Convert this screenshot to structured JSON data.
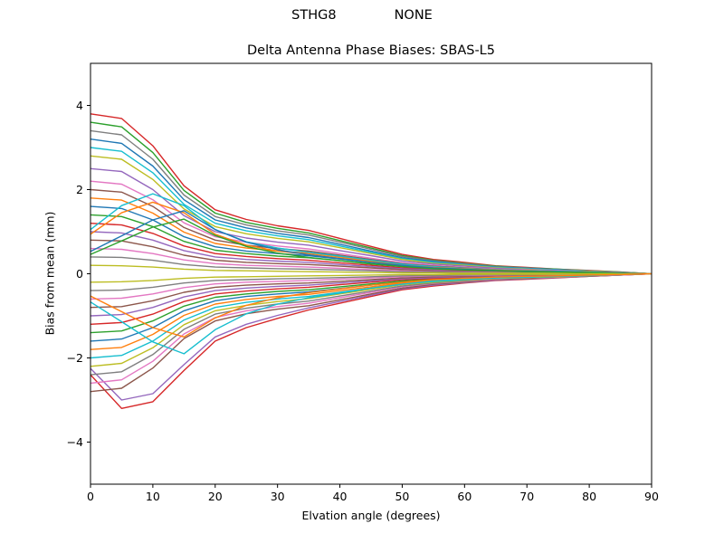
{
  "figure": {
    "suptitle_left": "STHG8",
    "suptitle_right": "NONE",
    "background": "#ffffff",
    "axis_color": "#000000"
  },
  "chart_data": {
    "type": "line",
    "title": "Delta Antenna Phase Biases: SBAS-L5",
    "xlabel": "Elvation angle (degrees)",
    "ylabel": "Bias from mean (mm)",
    "xlim": [
      0,
      90
    ],
    "ylim": [
      -5,
      5
    ],
    "grid": false,
    "legend": null,
    "x_ticks": [
      0,
      10,
      20,
      30,
      40,
      50,
      60,
      70,
      80,
      90
    ],
    "x_tick_labels": [
      "0",
      "10",
      "20",
      "30",
      "40",
      "50",
      "60",
      "70",
      "80",
      "90"
    ],
    "y_ticks": [
      -4,
      -2,
      0,
      2,
      4
    ],
    "y_tick_labels": [
      "−4",
      "−2",
      "0",
      "2",
      "4"
    ],
    "x": [
      0,
      5,
      10,
      15,
      20,
      25,
      30,
      35,
      40,
      45,
      50,
      55,
      60,
      65,
      70,
      75,
      80,
      85,
      90
    ],
    "series": [
      {
        "name": "s01",
        "color": "#d62728",
        "values": [
          3.8,
          3.69,
          3.04,
          2.09,
          1.52,
          1.29,
          1.14,
          1.03,
          0.84,
          0.65,
          0.46,
          0.34,
          0.27,
          0.19,
          0.15,
          0.11,
          0.08,
          0.04,
          0
        ]
      },
      {
        "name": "s02",
        "color": "#2ca02c",
        "values": [
          3.6,
          3.49,
          2.88,
          1.98,
          1.44,
          1.22,
          1.08,
          0.97,
          0.79,
          0.61,
          0.43,
          0.32,
          0.25,
          0.18,
          0.14,
          0.11,
          0.07,
          0.04,
          0
        ]
      },
      {
        "name": "s03",
        "color": "#7f7f7f",
        "values": [
          3.4,
          3.3,
          2.72,
          1.87,
          1.36,
          1.16,
          1.02,
          0.92,
          0.75,
          0.58,
          0.41,
          0.31,
          0.24,
          0.17,
          0.14,
          0.1,
          0.07,
          0.03,
          0
        ]
      },
      {
        "name": "s04",
        "color": "#1f77b4",
        "values": [
          3.2,
          3.1,
          2.56,
          1.76,
          1.28,
          1.09,
          0.96,
          0.86,
          0.7,
          0.54,
          0.38,
          0.29,
          0.22,
          0.16,
          0.13,
          0.1,
          0.06,
          0.03,
          0
        ]
      },
      {
        "name": "s05",
        "color": "#17becf",
        "values": [
          3,
          2.91,
          2.4,
          1.65,
          1.2,
          1.02,
          0.9,
          0.81,
          0.66,
          0.51,
          0.36,
          0.27,
          0.21,
          0.15,
          0.12,
          0.09,
          0.06,
          0.03,
          0
        ]
      },
      {
        "name": "s06",
        "color": "#bcbd22",
        "values": [
          2.8,
          2.72,
          2.24,
          1.54,
          1.12,
          0.95,
          0.84,
          0.76,
          0.62,
          0.48,
          0.34,
          0.25,
          0.2,
          0.14,
          0.11,
          0.08,
          0.06,
          0.03,
          0
        ]
      },
      {
        "name": "s07",
        "color": "#9467bd",
        "values": [
          2.5,
          2.43,
          2,
          1.38,
          1,
          0.85,
          0.75,
          0.68,
          0.55,
          0.43,
          0.3,
          0.23,
          0.18,
          0.13,
          0.1,
          0.08,
          0.05,
          0.03,
          0
        ]
      },
      {
        "name": "s08",
        "color": "#e377c2",
        "values": [
          2.2,
          2.13,
          1.76,
          1.21,
          0.88,
          0.75,
          0.66,
          0.59,
          0.48,
          0.37,
          0.26,
          0.2,
          0.15,
          0.11,
          0.09,
          0.07,
          0.04,
          0.02,
          0
        ]
      },
      {
        "name": "s09",
        "color": "#8c564b",
        "values": [
          2,
          1.94,
          1.6,
          1.1,
          0.8,
          0.68,
          0.6,
          0.54,
          0.44,
          0.34,
          0.24,
          0.18,
          0.14,
          0.1,
          0.08,
          0.06,
          0.04,
          0.02,
          0
        ]
      },
      {
        "name": "s10",
        "color": "#ff7f0e",
        "values": [
          1.8,
          1.75,
          1.44,
          0.99,
          0.72,
          0.61,
          0.54,
          0.49,
          0.4,
          0.31,
          0.22,
          0.16,
          0.13,
          0.09,
          0.07,
          0.05,
          0.04,
          0.02,
          0
        ]
      },
      {
        "name": "s11",
        "color": "#1f77b4",
        "values": [
          1.6,
          1.55,
          1.28,
          0.88,
          0.64,
          0.54,
          0.48,
          0.43,
          0.35,
          0.27,
          0.19,
          0.14,
          0.11,
          0.08,
          0.06,
          0.05,
          0.03,
          0.02,
          0
        ]
      },
      {
        "name": "s12",
        "color": "#2ca02c",
        "values": [
          1.4,
          1.36,
          1.12,
          0.77,
          0.56,
          0.48,
          0.42,
          0.38,
          0.31,
          0.24,
          0.17,
          0.13,
          0.1,
          0.07,
          0.06,
          0.04,
          0.03,
          0.01,
          0
        ]
      },
      {
        "name": "s13",
        "color": "#d62728",
        "values": [
          1.2,
          1.16,
          0.96,
          0.66,
          0.48,
          0.41,
          0.36,
          0.32,
          0.26,
          0.2,
          0.14,
          0.11,
          0.08,
          0.06,
          0.05,
          0.04,
          0.02,
          0.01,
          0
        ]
      },
      {
        "name": "s14",
        "color": "#9467bd",
        "values": [
          1,
          0.97,
          0.8,
          0.55,
          0.4,
          0.34,
          0.3,
          0.27,
          0.22,
          0.17,
          0.12,
          0.09,
          0.07,
          0.05,
          0.04,
          0.03,
          0.02,
          0.01,
          0
        ]
      },
      {
        "name": "s15",
        "color": "#8c564b",
        "values": [
          0.8,
          0.78,
          0.64,
          0.44,
          0.32,
          0.27,
          0.24,
          0.22,
          0.18,
          0.14,
          0.1,
          0.07,
          0.06,
          0.04,
          0.03,
          0.02,
          0.02,
          0.01,
          0
        ]
      },
      {
        "name": "s16",
        "color": "#e377c2",
        "values": [
          0.6,
          0.58,
          0.48,
          0.33,
          0.24,
          0.2,
          0.18,
          0.16,
          0.13,
          0.1,
          0.07,
          0.05,
          0.04,
          0.03,
          0.02,
          0.02,
          0.01,
          0.01,
          0
        ]
      },
      {
        "name": "s17",
        "color": "#7f7f7f",
        "values": [
          0.4,
          0.39,
          0.32,
          0.22,
          0.16,
          0.14,
          0.12,
          0.11,
          0.09,
          0.07,
          0.05,
          0.04,
          0.03,
          0.02,
          0.02,
          0.01,
          0.01,
          0,
          0
        ]
      },
      {
        "name": "s18",
        "color": "#bcbd22",
        "values": [
          0.2,
          0.19,
          0.16,
          0.11,
          0.08,
          0.07,
          0.06,
          0.05,
          0.04,
          0.03,
          0.02,
          0.02,
          0.01,
          0.01,
          0.01,
          0.01,
          0,
          0,
          0
        ]
      },
      {
        "name": "s19",
        "color": "#17becf",
        "values": [
          1.05,
          1.62,
          1.9,
          1.62,
          1.05,
          0.76,
          0.61,
          0.51,
          0.42,
          0.32,
          0.23,
          0.17,
          0.13,
          0.1,
          0.08,
          0.06,
          0.04,
          0.02,
          0
        ]
      },
      {
        "name": "s20",
        "color": "#ff7f0e",
        "values": [
          0.94,
          1.45,
          1.7,
          1.45,
          0.94,
          0.68,
          0.54,
          0.46,
          0.37,
          0.29,
          0.2,
          0.15,
          0.12,
          0.09,
          0.07,
          0.05,
          0.03,
          0.02,
          0
        ]
      },
      {
        "name": "s21",
        "color": "#1f77b4",
        "values": [
          0.53,
          0.9,
          1.28,
          1.5,
          1.05,
          0.75,
          0.57,
          0.45,
          0.36,
          0.27,
          0.2,
          0.14,
          0.11,
          0.08,
          0.06,
          0.05,
          0.03,
          0.02,
          0
        ]
      },
      {
        "name": "s22",
        "color": "#2ca02c",
        "values": [
          0.46,
          0.78,
          1.11,
          1.3,
          0.91,
          0.65,
          0.49,
          0.39,
          0.31,
          0.23,
          0.17,
          0.12,
          0.09,
          0.07,
          0.05,
          0.04,
          0.03,
          0.01,
          0
        ]
      },
      {
        "name": "s23",
        "color": "#d62728",
        "values": [
          -2.4,
          -3.2,
          -3.04,
          -2.3,
          -1.6,
          -1.28,
          -1.06,
          -0.86,
          -0.7,
          -0.54,
          -0.38,
          -0.29,
          -0.22,
          -0.16,
          -0.13,
          -0.1,
          -0.06,
          -0.03,
          0
        ]
      },
      {
        "name": "s24",
        "color": "#9467bd",
        "values": [
          -2.25,
          -3,
          -2.85,
          -2.16,
          -1.5,
          -1.2,
          -0.99,
          -0.81,
          -0.66,
          -0.51,
          -0.36,
          -0.27,
          -0.21,
          -0.15,
          -0.12,
          -0.09,
          -0.06,
          -0.03,
          0
        ]
      },
      {
        "name": "s25",
        "color": "#8c564b",
        "values": [
          -2.8,
          -2.72,
          -2.24,
          -1.54,
          -1.12,
          -0.95,
          -0.84,
          -0.76,
          -0.62,
          -0.48,
          -0.34,
          -0.25,
          -0.2,
          -0.14,
          -0.11,
          -0.08,
          -0.06,
          -0.03,
          0
        ]
      },
      {
        "name": "s26",
        "color": "#e377c2",
        "values": [
          -2.6,
          -2.52,
          -2.08,
          -1.43,
          -1.04,
          -0.88,
          -0.78,
          -0.7,
          -0.57,
          -0.44,
          -0.31,
          -0.23,
          -0.18,
          -0.13,
          -0.1,
          -0.08,
          -0.05,
          -0.03,
          0
        ]
      },
      {
        "name": "s27",
        "color": "#7f7f7f",
        "values": [
          -2.4,
          -2.33,
          -1.92,
          -1.32,
          -0.96,
          -0.82,
          -0.72,
          -0.65,
          -0.53,
          -0.41,
          -0.29,
          -0.22,
          -0.17,
          -0.12,
          -0.1,
          -0.07,
          -0.05,
          -0.02,
          0
        ]
      },
      {
        "name": "s28",
        "color": "#bcbd22",
        "values": [
          -2.2,
          -2.13,
          -1.76,
          -1.21,
          -0.88,
          -0.75,
          -0.66,
          -0.59,
          -0.48,
          -0.37,
          -0.26,
          -0.2,
          -0.15,
          -0.11,
          -0.09,
          -0.07,
          -0.04,
          -0.02,
          0
        ]
      },
      {
        "name": "s29",
        "color": "#17becf",
        "values": [
          -2,
          -1.94,
          -1.6,
          -1.1,
          -0.8,
          -0.68,
          -0.6,
          -0.54,
          -0.44,
          -0.34,
          -0.24,
          -0.18,
          -0.14,
          -0.1,
          -0.08,
          -0.06,
          -0.04,
          -0.02,
          0
        ]
      },
      {
        "name": "s30",
        "color": "#ff7f0e",
        "values": [
          -1.8,
          -1.75,
          -1.44,
          -0.99,
          -0.72,
          -0.61,
          -0.54,
          -0.49,
          -0.4,
          -0.31,
          -0.22,
          -0.16,
          -0.13,
          -0.09,
          -0.07,
          -0.05,
          -0.04,
          -0.02,
          0
        ]
      },
      {
        "name": "s31",
        "color": "#1f77b4",
        "values": [
          -1.6,
          -1.55,
          -1.28,
          -0.88,
          -0.64,
          -0.54,
          -0.48,
          -0.43,
          -0.35,
          -0.27,
          -0.19,
          -0.14,
          -0.11,
          -0.08,
          -0.06,
          -0.05,
          -0.03,
          -0.02,
          0
        ]
      },
      {
        "name": "s32",
        "color": "#2ca02c",
        "values": [
          -1.4,
          -1.36,
          -1.12,
          -0.77,
          -0.56,
          -0.48,
          -0.42,
          -0.38,
          -0.31,
          -0.24,
          -0.17,
          -0.13,
          -0.1,
          -0.07,
          -0.06,
          -0.04,
          -0.03,
          -0.01,
          0
        ]
      },
      {
        "name": "s33",
        "color": "#d62728",
        "values": [
          -1.2,
          -1.16,
          -0.96,
          -0.66,
          -0.48,
          -0.41,
          -0.36,
          -0.32,
          -0.26,
          -0.2,
          -0.14,
          -0.11,
          -0.08,
          -0.06,
          -0.05,
          -0.04,
          -0.02,
          -0.01,
          0
        ]
      },
      {
        "name": "s34",
        "color": "#9467bd",
        "values": [
          -1,
          -0.97,
          -0.8,
          -0.55,
          -0.4,
          -0.34,
          -0.3,
          -0.27,
          -0.22,
          -0.17,
          -0.12,
          -0.09,
          -0.07,
          -0.05,
          -0.04,
          -0.03,
          -0.02,
          -0.01,
          0
        ]
      },
      {
        "name": "s35",
        "color": "#8c564b",
        "values": [
          -0.8,
          -0.78,
          -0.64,
          -0.44,
          -0.32,
          -0.27,
          -0.24,
          -0.22,
          -0.18,
          -0.14,
          -0.1,
          -0.07,
          -0.06,
          -0.04,
          -0.03,
          -0.02,
          -0.02,
          -0.01,
          0
        ]
      },
      {
        "name": "s36",
        "color": "#e377c2",
        "values": [
          -0.6,
          -0.58,
          -0.48,
          -0.33,
          -0.24,
          -0.2,
          -0.18,
          -0.16,
          -0.13,
          -0.1,
          -0.07,
          -0.05,
          -0.04,
          -0.03,
          -0.02,
          -0.02,
          -0.01,
          -0.01,
          0
        ]
      },
      {
        "name": "s37",
        "color": "#7f7f7f",
        "values": [
          -0.4,
          -0.39,
          -0.32,
          -0.22,
          -0.16,
          -0.14,
          -0.12,
          -0.11,
          -0.09,
          -0.07,
          -0.05,
          -0.04,
          -0.03,
          -0.02,
          -0.02,
          -0.01,
          -0.01,
          0,
          0
        ]
      },
      {
        "name": "s38",
        "color": "#bcbd22",
        "values": [
          -0.2,
          -0.19,
          -0.16,
          -0.11,
          -0.08,
          -0.07,
          -0.06,
          -0.05,
          -0.04,
          -0.03,
          -0.02,
          -0.02,
          -0.01,
          -0.01,
          -0.01,
          -0.01,
          0,
          0,
          0
        ]
      },
      {
        "name": "s39",
        "color": "#17becf",
        "values": [
          -0.67,
          -1.14,
          -1.62,
          -1.9,
          -1.33,
          -0.95,
          -0.72,
          -0.57,
          -0.46,
          -0.34,
          -0.25,
          -0.17,
          -0.13,
          -0.1,
          -0.08,
          -0.06,
          -0.04,
          -0.02,
          0
        ]
      },
      {
        "name": "s40",
        "color": "#ff7f0e",
        "values": [
          -0.53,
          -0.9,
          -1.28,
          -1.5,
          -1.05,
          -0.75,
          -0.57,
          -0.45,
          -0.36,
          -0.27,
          -0.2,
          -0.14,
          -0.11,
          -0.08,
          -0.06,
          -0.05,
          -0.03,
          -0.02,
          0
        ]
      }
    ]
  }
}
